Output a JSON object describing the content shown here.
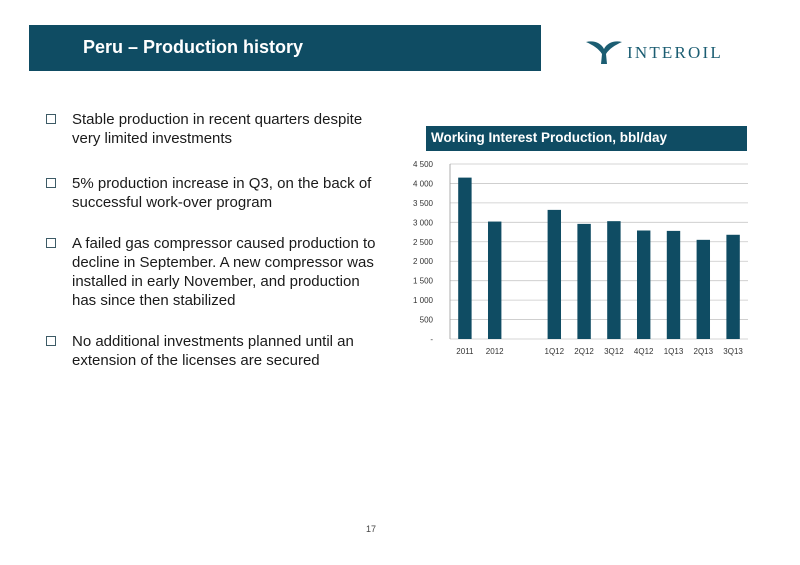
{
  "header": {
    "title": "Peru – Production history"
  },
  "logo": {
    "name": "INTEROIL",
    "icon": "whale-tail-icon"
  },
  "bullets": [
    "Stable production in recent quarters despite very limited investments",
    "5% production increase in Q3, on the back of successful work-over program",
    "A failed gas compressor caused production to decline in September. A new compressor was installed in early November, and production has since then stabilized",
    "No additional investments planned until an extension of the licenses are secured"
  ],
  "chart_data": {
    "type": "bar",
    "title": "Working Interest Production, bbl/day",
    "categories": [
      "2011",
      "2012",
      "",
      "1Q12",
      "2Q12",
      "3Q12",
      "4Q12",
      "1Q13",
      "2Q13",
      "3Q13"
    ],
    "values": [
      4150,
      3020,
      null,
      3320,
      2960,
      3030,
      2790,
      2780,
      2550,
      2680
    ],
    "yticks": [
      "-",
      "500",
      "1 000",
      "1 500",
      "2 000",
      "2 500",
      "3 000",
      "3 500",
      "4 000",
      "4 500"
    ],
    "ylim": [
      0,
      4500
    ],
    "grid": true,
    "bar_color": "#0f4c63"
  },
  "footer": {
    "page_number": "17"
  },
  "colors": {
    "header_bg": "#0f4c63",
    "accent": "#1b5d72"
  }
}
